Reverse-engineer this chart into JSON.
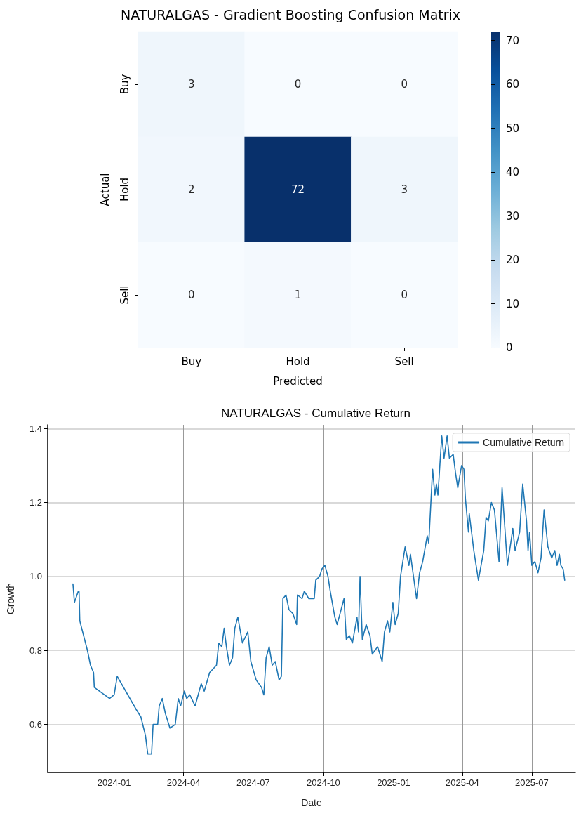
{
  "chart_data": [
    {
      "type": "heatmap",
      "title": "NATURALGAS - Gradient Boosting Confusion Matrix",
      "xlabel": "Predicted",
      "ylabel": "Actual",
      "categories": [
        "Buy",
        "Hold",
        "Sell"
      ],
      "y_categories": [
        "Buy",
        "Hold",
        "Sell"
      ],
      "cells": [
        [
          3,
          0,
          0
        ],
        [
          2,
          72,
          3
        ],
        [
          0,
          1,
          0
        ]
      ],
      "clim": [
        0,
        72
      ],
      "cticks": [
        0,
        10,
        20,
        30,
        40,
        50,
        60,
        70
      ],
      "data_labels": true
    },
    {
      "type": "line",
      "title": "NATURALGAS - Cumulative Return",
      "xlabel": "Date",
      "ylabel": "Growth",
      "x": [
        "2023-11-08",
        "2023-11-10",
        "2023-11-15",
        "2023-11-16",
        "2023-11-17",
        "2023-11-27",
        "2023-12-01",
        "2023-12-05",
        "2023-12-06",
        "2023-12-26",
        "2024-01-01",
        "2024-01-05",
        "2024-01-30",
        "2024-02-05",
        "2024-02-11",
        "2024-02-14",
        "2024-02-19",
        "2024-02-21",
        "2024-02-27",
        "2024-02-29",
        "2024-03-04",
        "2024-03-08",
        "2024-03-14",
        "2024-03-21",
        "2024-03-25",
        "2024-03-28",
        "2024-04-02",
        "2024-04-05",
        "2024-04-09",
        "2024-04-16",
        "2024-04-24",
        "2024-04-28",
        "2024-05-05",
        "2024-05-14",
        "2024-05-17",
        "2024-05-21",
        "2024-05-24",
        "2024-05-27",
        "2024-05-31",
        "2024-06-04",
        "2024-06-07",
        "2024-06-11",
        "2024-06-17",
        "2024-06-24",
        "2024-06-28",
        "2024-07-05",
        "2024-07-12",
        "2024-07-15",
        "2024-07-18",
        "2024-07-22",
        "2024-07-26",
        "2024-07-30",
        "2024-08-04",
        "2024-08-07",
        "2024-08-09",
        "2024-08-13",
        "2024-08-17",
        "2024-08-22",
        "2024-08-27",
        "2024-08-28",
        "2024-09-03",
        "2024-09-06",
        "2024-09-12",
        "2024-09-19",
        "2024-09-21",
        "2024-09-26",
        "2024-09-29",
        "2024-10-03",
        "2024-10-07",
        "2024-10-10",
        "2024-10-16",
        "2024-10-19",
        "2024-10-28",
        "2024-10-31",
        "2024-11-04",
        "2024-11-08",
        "2024-11-14",
        "2024-11-16",
        "2024-11-18",
        "2024-11-21",
        "2024-11-26",
        "2024-12-01",
        "2024-12-04",
        "2024-12-11",
        "2024-12-17",
        "2024-12-20",
        "2024-12-24",
        "2024-12-27",
        "2024-12-31",
        "2025-01-03",
        "2025-01-07",
        "2025-01-10",
        "2025-01-16",
        "2025-01-21",
        "2025-01-23",
        "2025-01-31",
        "2025-02-04",
        "2025-02-08",
        "2025-02-14",
        "2025-02-16",
        "2025-02-21",
        "2025-02-24",
        "2025-02-26",
        "2025-02-28",
        "2025-03-05",
        "2025-03-08",
        "2025-03-12",
        "2025-03-15",
        "2025-03-20",
        "2025-03-23",
        "2025-03-26",
        "2025-03-31",
        "2025-04-03",
        "2025-04-05",
        "2025-04-09",
        "2025-04-10",
        "2025-04-16",
        "2025-04-22",
        "2025-04-29",
        "2025-05-02",
        "2025-05-05",
        "2025-05-09",
        "2025-05-13",
        "2025-05-19",
        "2025-05-23",
        "2025-05-30",
        "2025-06-04",
        "2025-06-06",
        "2025-06-09",
        "2025-06-15",
        "2025-06-19",
        "2025-06-24",
        "2025-06-26",
        "2025-06-28",
        "2025-07-01",
        "2025-07-05",
        "2025-07-09",
        "2025-07-13",
        "2025-07-17",
        "2025-07-22",
        "2025-07-27",
        "2025-07-31",
        "2025-08-03",
        "2025-08-06",
        "2025-08-08",
        "2025-08-11",
        "2025-08-13"
      ],
      "series": [
        {
          "name": "Cumulative Return",
          "color": "#1f77b4",
          "values": [
            0.98,
            0.93,
            0.96,
            0.96,
            0.88,
            0.8,
            0.76,
            0.74,
            0.7,
            0.67,
            0.68,
            0.73,
            0.64,
            0.62,
            0.57,
            0.52,
            0.52,
            0.6,
            0.6,
            0.65,
            0.67,
            0.63,
            0.59,
            0.6,
            0.67,
            0.65,
            0.69,
            0.67,
            0.68,
            0.65,
            0.71,
            0.69,
            0.74,
            0.76,
            0.82,
            0.81,
            0.86,
            0.81,
            0.76,
            0.78,
            0.86,
            0.89,
            0.82,
            0.85,
            0.77,
            0.72,
            0.7,
            0.68,
            0.78,
            0.81,
            0.76,
            0.77,
            0.72,
            0.73,
            0.94,
            0.95,
            0.91,
            0.9,
            0.87,
            0.95,
            0.94,
            0.96,
            0.94,
            0.94,
            0.99,
            1.0,
            1.02,
            1.03,
            1.0,
            0.96,
            0.89,
            0.87,
            0.94,
            0.83,
            0.84,
            0.82,
            0.89,
            0.85,
            1.0,
            0.83,
            0.87,
            0.84,
            0.79,
            0.81,
            0.77,
            0.85,
            0.88,
            0.85,
            0.93,
            0.87,
            0.9,
            1.0,
            1.08,
            1.03,
            1.06,
            0.94,
            1.01,
            1.04,
            1.11,
            1.09,
            1.29,
            1.22,
            1.25,
            1.22,
            1.38,
            1.32,
            1.38,
            1.32,
            1.33,
            1.28,
            1.24,
            1.3,
            1.29,
            1.21,
            1.12,
            1.17,
            1.07,
            0.99,
            1.07,
            1.16,
            1.15,
            1.2,
            1.18,
            1.04,
            1.24,
            1.03,
            1.1,
            1.13,
            1.07,
            1.12,
            1.25,
            1.15,
            1.07,
            1.12,
            1.03,
            1.04,
            1.01,
            1.05,
            1.18,
            1.08,
            1.05,
            1.07,
            1.03,
            1.06,
            1.03,
            1.02,
            0.99
          ]
        }
      ],
      "xlim": [
        "2023-10-06",
        "2025-08-27"
      ],
      "xticks": [
        "2024-01",
        "2024-04",
        "2024-07",
        "2024-10",
        "2025-01",
        "2025-04",
        "2025-07"
      ],
      "ylim": [
        0.47,
        1.41
      ],
      "yticks": [
        0.6,
        0.8,
        {
          "value": 1.0,
          "label": "1.0"
        },
        1.2,
        1.4
      ],
      "grid": true,
      "legend": "top right"
    }
  ]
}
